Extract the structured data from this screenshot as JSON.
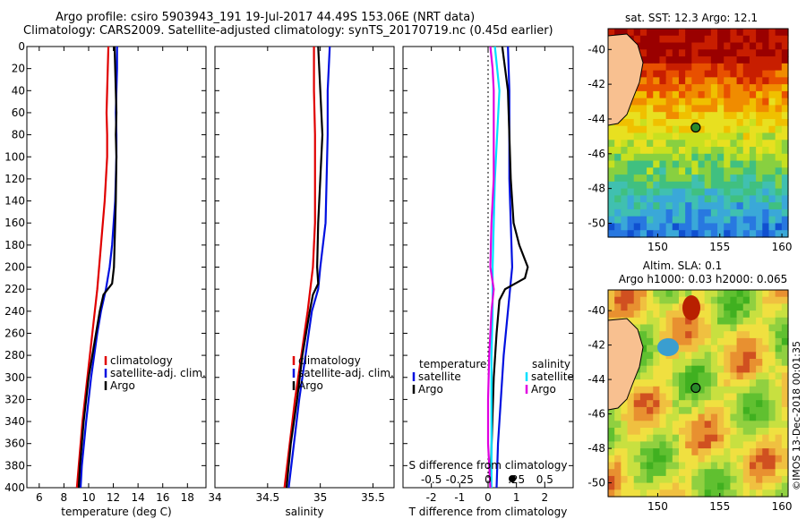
{
  "header": {
    "line1": "Argo profile: csiro 5903943_191 19-Jul-2017 44.49S 153.06E (NRT data)",
    "line2": "Climatology: CARS2009. Satellite-adjusted climatology: synTS_20170719.nc (0.45d earlier)"
  },
  "footer": {
    "watermark": "©IMOS 13-Dec-2018 00:01:35"
  },
  "colors": {
    "climatology": "#e00000",
    "satellite": "#0010e0",
    "argo": "#000000",
    "sal_satellite": "#00e0ff",
    "sal_argo": "#e000e0",
    "station_marker": "#2a8a2a"
  },
  "chart_data": [
    {
      "type": "line",
      "id": "temperature",
      "xlabel": "temperature (deg C)",
      "ylabel": "",
      "xlim": [
        5,
        19.5
      ],
      "ylim": [
        400,
        0
      ],
      "xticks": [
        6,
        8,
        10,
        12,
        14,
        16,
        18
      ],
      "yticks": [
        0,
        20,
        40,
        60,
        80,
        100,
        120,
        140,
        160,
        180,
        200,
        220,
        240,
        260,
        280,
        300,
        320,
        340,
        360,
        380,
        400
      ],
      "legend": {
        "position": "lower-right",
        "entries": [
          "climatology",
          "satellite-adj. clim.",
          "Argo"
        ]
      },
      "series": [
        {
          "name": "climatology",
          "color_key": "climatology",
          "depth": [
            0,
            20,
            40,
            60,
            80,
            100,
            140,
            180,
            200,
            220,
            260,
            300,
            340,
            380,
            400
          ],
          "values": [
            11.6,
            11.55,
            11.5,
            11.45,
            11.5,
            11.5,
            11.3,
            11.0,
            10.85,
            10.7,
            10.3,
            9.9,
            9.5,
            9.2,
            9.05
          ]
        },
        {
          "name": "satellite-adj. clim.",
          "color_key": "satellite",
          "depth": [
            0,
            20,
            40,
            60,
            80,
            100,
            140,
            180,
            200,
            220,
            240,
            260,
            300,
            340,
            380,
            400
          ],
          "values": [
            12.3,
            12.3,
            12.25,
            12.2,
            12.25,
            12.25,
            12.15,
            11.9,
            11.7,
            11.4,
            11.0,
            10.7,
            10.2,
            9.8,
            9.45,
            9.35
          ]
        },
        {
          "name": "Argo",
          "color_key": "argo",
          "depth": [
            0,
            20,
            40,
            60,
            80,
            100,
            140,
            180,
            200,
            215,
            225,
            240,
            260,
            300,
            340,
            380,
            400
          ],
          "values": [
            12.1,
            12.15,
            12.2,
            12.25,
            12.2,
            12.25,
            12.2,
            12.1,
            12.05,
            11.9,
            11.2,
            10.9,
            10.6,
            10.0,
            9.6,
            9.3,
            9.2
          ]
        }
      ]
    },
    {
      "type": "line",
      "id": "salinity",
      "xlabel": "salinity",
      "xlim": [
        34.0,
        35.7
      ],
      "ylim": [
        400,
        0
      ],
      "xticks": [
        34,
        34.5,
        35,
        35.5
      ],
      "xticklabels": [
        "34",
        "34.5",
        "35",
        "35.5"
      ],
      "legend": {
        "position": "lower-right",
        "entries": [
          "climatology",
          "satellite-adj. clim.",
          "Argo"
        ]
      },
      "series": [
        {
          "name": "climatology",
          "color_key": "climatology",
          "depth": [
            0,
            40,
            80,
            120,
            160,
            200,
            240,
            280,
            320,
            360,
            400
          ],
          "values": [
            34.94,
            34.94,
            34.95,
            34.95,
            34.95,
            34.93,
            34.88,
            34.82,
            34.76,
            34.71,
            34.66
          ]
        },
        {
          "name": "satellite-adj. clim.",
          "color_key": "satellite",
          "depth": [
            0,
            20,
            40,
            80,
            120,
            160,
            200,
            220,
            240,
            280,
            320,
            360,
            400
          ],
          "values": [
            35.09,
            35.08,
            35.07,
            35.07,
            35.06,
            35.05,
            35.0,
            34.98,
            34.92,
            34.86,
            34.8,
            34.75,
            34.7
          ]
        },
        {
          "name": "Argo",
          "color_key": "argo",
          "depth": [
            0,
            40,
            80,
            120,
            160,
            200,
            215,
            225,
            240,
            280,
            320,
            360,
            400
          ],
          "values": [
            34.98,
            35.0,
            35.02,
            35.0,
            34.98,
            34.97,
            34.98,
            34.93,
            34.9,
            34.83,
            34.78,
            34.72,
            34.68
          ]
        }
      ]
    },
    {
      "type": "line",
      "id": "difference",
      "xlabel": "T difference from climatology",
      "x2label": "S difference from climatology",
      "xlim": [
        -3,
        3
      ],
      "ylim": [
        400,
        0
      ],
      "xticks": [
        -2,
        -1,
        0,
        1,
        2
      ],
      "x2ticklabels": [
        "-0.5",
        "-0.25",
        "0",
        ".25",
        "0.5"
      ],
      "x2ticks": [
        -0.5,
        -0.25,
        0,
        0.25,
        0.5
      ],
      "legend_temperature": {
        "title": "temperature",
        "entries": [
          "satellite",
          "Argo"
        ]
      },
      "legend_salinity": {
        "title": "salinity",
        "entries": [
          "satellite",
          "Argo"
        ]
      },
      "series": [
        {
          "name": "temperature satellite",
          "color_key": "satellite",
          "depth": [
            0,
            40,
            80,
            120,
            160,
            200,
            240,
            280,
            320,
            360,
            400
          ],
          "values": [
            0.7,
            0.75,
            0.75,
            0.75,
            0.8,
            0.85,
            0.7,
            0.55,
            0.45,
            0.35,
            0.3
          ]
        },
        {
          "name": "temperature Argo",
          "color_key": "argo",
          "depth": [
            0,
            20,
            40,
            80,
            120,
            160,
            180,
            200,
            210,
            220,
            230,
            260,
            300,
            340,
            380,
            400
          ],
          "values": [
            0.5,
            0.6,
            0.7,
            0.75,
            0.8,
            0.9,
            1.1,
            1.4,
            1.3,
            0.6,
            0.4,
            0.3,
            0.2,
            0.15,
            0.1,
            0.1
          ]
        },
        {
          "name": "salinity satellite",
          "color_key": "sal_satellite",
          "depth": [
            0,
            40,
            80,
            120,
            160,
            200,
            240,
            280,
            320,
            360,
            400
          ],
          "values": [
            0.06,
            0.1,
            0.08,
            0.06,
            0.05,
            0.04,
            0.04,
            0.03,
            0.03,
            0.03,
            0.03
          ]
        },
        {
          "name": "salinity Argo",
          "color_key": "sal_argo",
          "depth": [
            0,
            20,
            40,
            80,
            120,
            160,
            200,
            220,
            240,
            280,
            320,
            360,
            400
          ],
          "values": [
            0.02,
            0.04,
            0.05,
            0.05,
            0.05,
            0.03,
            0.02,
            0.05,
            0.03,
            0.01,
            0.0,
            0.0,
            0.02
          ]
        }
      ]
    },
    {
      "type": "heatmap",
      "id": "sst-map",
      "title": "sat. SST: 12.3 Argo: 12.1",
      "xlim": [
        146,
        160.5
      ],
      "ylim": [
        -50.8,
        -38.8
      ],
      "xticks": [
        150,
        155,
        160
      ],
      "yticks": [
        -40,
        -42,
        -44,
        -46,
        -48,
        -50
      ],
      "marker": {
        "lon": 153.06,
        "lat": -44.49
      }
    },
    {
      "type": "heatmap",
      "id": "sla-map",
      "title_line1": "Altim. SLA: 0.1",
      "title_line2": "Argo h1000: 0.03 h2000: 0.065",
      "xlim": [
        146,
        160.5
      ],
      "ylim": [
        -50.8,
        -38.8
      ],
      "xticks": [
        150,
        155,
        160
      ],
      "yticks": [
        -40,
        -42,
        -44,
        -46,
        -48,
        -50
      ],
      "marker": {
        "lon": 153.06,
        "lat": -44.49
      }
    }
  ]
}
